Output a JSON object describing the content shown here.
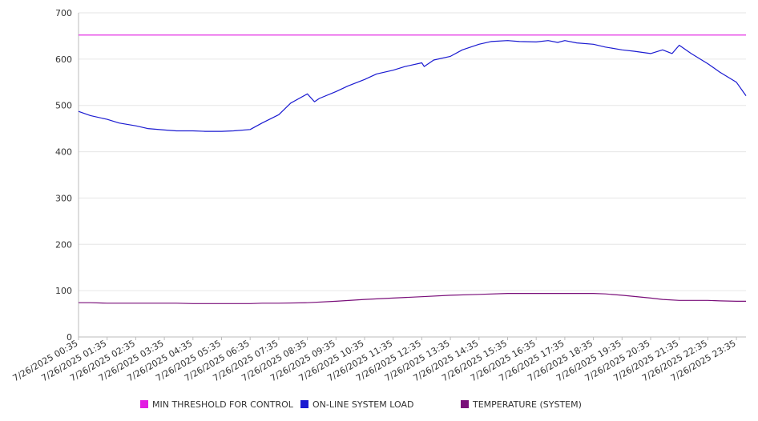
{
  "chart_data": {
    "type": "line",
    "title": "",
    "xlabel": "",
    "ylabel": "",
    "ylim": [
      0,
      700
    ],
    "yticks": [
      0,
      100,
      200,
      300,
      400,
      500,
      600,
      700
    ],
    "x_tick_labels": [
      "7/26/2025 00:35",
      "7/26/2025 01:35",
      "7/26/2025 02:35",
      "7/26/2025 03:35",
      "7/26/2025 04:35",
      "7/26/2025 05:35",
      "7/26/2025 06:35",
      "7/26/2025 07:35",
      "7/26/2025 08:35",
      "7/26/2025 09:35",
      "7/26/2025 10:35",
      "7/26/2025 11:35",
      "7/26/2025 12:35",
      "7/26/2025 13:35",
      "7/26/2025 14:35",
      "7/26/2025 15:35",
      "7/26/2025 16:35",
      "7/26/2025 17:35",
      "7/26/2025 18:35",
      "7/26/2025 19:35",
      "7/26/2025 20:35",
      "7/26/2025 21:35",
      "7/26/2025 22:35",
      "7/26/2025 23:35"
    ],
    "grid": true,
    "legend_position": "bottom",
    "series": [
      {
        "name": "MIN THRESHOLD FOR CONTROL",
        "color": "#e21ce2",
        "x": [
          "00:35",
          "23:55"
        ],
        "y": [
          652,
          652
        ]
      },
      {
        "name": "ON-LINE SYSTEM LOAD",
        "color": "#1a1ad1",
        "x": [
          "00:35",
          "01:00",
          "01:35",
          "02:00",
          "02:35",
          "03:00",
          "03:35",
          "04:00",
          "04:35",
          "05:00",
          "05:35",
          "06:00",
          "06:35",
          "07:00",
          "07:35",
          "08:00",
          "08:35",
          "08:50",
          "09:00",
          "09:35",
          "10:00",
          "10:35",
          "11:00",
          "11:35",
          "12:00",
          "12:35",
          "12:40",
          "13:00",
          "13:35",
          "14:00",
          "14:35",
          "15:00",
          "15:35",
          "16:00",
          "16:35",
          "17:00",
          "17:20",
          "17:35",
          "18:00",
          "18:35",
          "19:00",
          "19:35",
          "20:00",
          "20:35",
          "21:00",
          "21:20",
          "21:35",
          "22:00",
          "22:35",
          "23:00",
          "23:35",
          "23:55"
        ],
        "y": [
          487,
          478,
          470,
          462,
          456,
          450,
          447,
          445,
          445,
          444,
          444,
          445,
          448,
          462,
          480,
          505,
          525,
          508,
          515,
          530,
          542,
          556,
          568,
          576,
          584,
          592,
          584,
          598,
          606,
          620,
          632,
          638,
          640,
          638,
          637,
          640,
          636,
          640,
          635,
          632,
          626,
          620,
          617,
          612,
          620,
          612,
          630,
          612,
          590,
          572,
          550,
          521
        ]
      },
      {
        "name": "TEMPERATURE (SYSTEM)",
        "color": "#7a0f7a",
        "x": [
          "00:35",
          "01:00",
          "01:35",
          "02:35",
          "03:35",
          "04:00",
          "04:35",
          "05:35",
          "06:35",
          "07:00",
          "07:35",
          "08:35",
          "09:35",
          "10:35",
          "11:35",
          "12:35",
          "13:35",
          "14:35",
          "15:35",
          "16:35",
          "17:35",
          "18:35",
          "19:00",
          "19:35",
          "20:35",
          "21:00",
          "21:35",
          "22:35",
          "23:00",
          "23:35",
          "23:55"
        ],
        "y": [
          74,
          74,
          73,
          73,
          73,
          73,
          72,
          72,
          72,
          73,
          73,
          74,
          77,
          81,
          84,
          87,
          90,
          92,
          94,
          94,
          94,
          94,
          93,
          90,
          84,
          81,
          79,
          79,
          78,
          77,
          77
        ]
      }
    ]
  }
}
